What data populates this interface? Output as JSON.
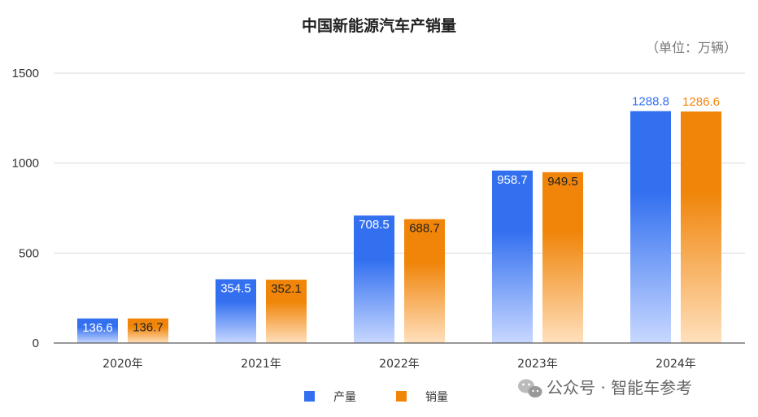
{
  "title": "中国新能源汽车产销量",
  "unit_note": "（单位：万辆）",
  "watermark": "公众号 · 智能车参考",
  "chart_data": {
    "type": "bar",
    "categories": [
      "2020年",
      "2021年",
      "2022年",
      "2023年",
      "2024年"
    ],
    "series": [
      {
        "name": "产量",
        "values": [
          136.6,
          354.5,
          708.5,
          958.7,
          1288.8
        ],
        "color": "#3370F0",
        "color_light": "#C8D8FF"
      },
      {
        "name": "销量",
        "values": [
          136.7,
          352.1,
          688.7,
          949.5,
          1286.6
        ],
        "color": "#F0850A",
        "color_light": "#FFE0BD"
      }
    ],
    "ylim": [
      0,
      1500
    ],
    "yticks": [
      0,
      500,
      1000,
      1500
    ],
    "grid": true,
    "legend_position": "bottom"
  }
}
